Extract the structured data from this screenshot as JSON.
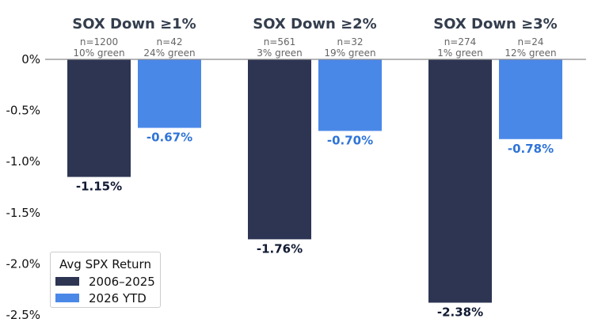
{
  "chart_data": {
    "type": "bar",
    "categories": [
      "SOX Down ≥1%",
      "SOX Down ≥2%",
      "SOX Down ≥3%"
    ],
    "series": [
      {
        "name": "2006–2025",
        "color": "#2d3553",
        "label_color": "#111a33",
        "values": [
          -1.15,
          -1.76,
          -2.38
        ],
        "labels": [
          "-1.15%",
          "-1.76%",
          "-2.38%"
        ],
        "notes": [
          [
            "n=1200",
            "10% green"
          ],
          [
            "n=561",
            "3% green"
          ],
          [
            "n=274",
            "1% green"
          ]
        ]
      },
      {
        "name": "2026 YTD",
        "color": "#4a88e8",
        "label_color": "#2f74d8",
        "values": [
          -0.67,
          -0.7,
          -0.78
        ],
        "labels": [
          "-0.67%",
          "-0.70%",
          "-0.78%"
        ],
        "notes": [
          [
            "n=42",
            "24% green"
          ],
          [
            "n=32",
            "19% green"
          ],
          [
            "n=24",
            "12% green"
          ]
        ]
      }
    ],
    "yticks": [
      0,
      -0.5,
      -1.0,
      -1.5,
      -2.0,
      -2.5
    ],
    "ytick_labels": [
      "0%",
      "-0.5%",
      "-1.0%",
      "-1.5%",
      "-2.0%",
      "-2.5%"
    ],
    "ylim": [
      -2.5,
      0
    ],
    "grid": false,
    "legend": {
      "title": "Avg SPX Return",
      "placement": "bottom-left"
    }
  }
}
